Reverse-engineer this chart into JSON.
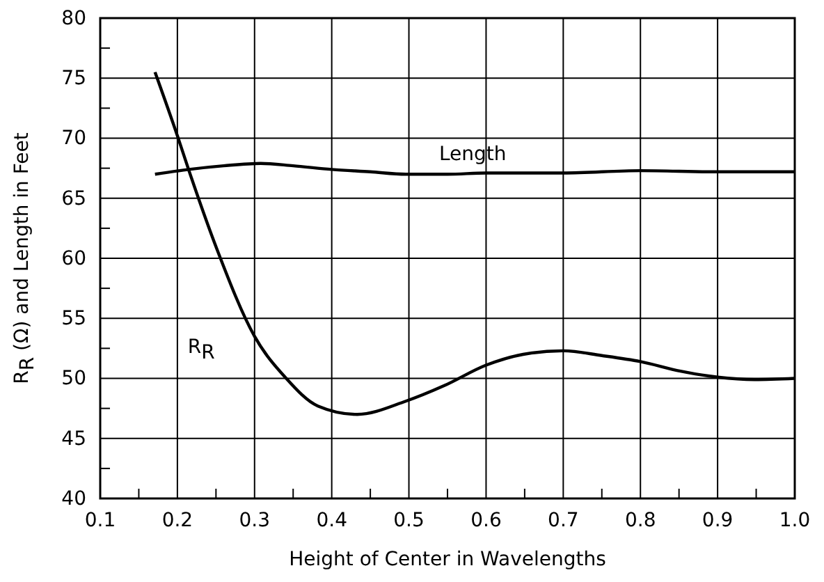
{
  "chart_data": {
    "type": "line",
    "xlabel": "Height of Center in Wavelengths",
    "ylabel": "R$_{R}$ (Ω) and Length in Feet",
    "xlim": [
      0.1,
      1.0
    ],
    "ylim": [
      40,
      80
    ],
    "xticks": [
      0.1,
      {
        "value": 0.15,
        "label": null
      },
      0.2,
      {
        "value": 0.25,
        "label": null
      },
      0.3,
      {
        "value": 0.35,
        "label": null
      },
      0.4,
      {
        "value": 0.45,
        "label": null
      },
      0.5,
      {
        "value": 0.55,
        "label": null
      },
      0.6,
      {
        "value": 0.65,
        "label": null
      },
      0.7,
      {
        "value": 0.75,
        "label": null
      },
      0.8,
      {
        "value": 0.85,
        "label": null
      },
      0.9,
      {
        "value": 0.95,
        "label": null
      },
      {
        "value": 1.0,
        "label": "1.0"
      }
    ],
    "yticks": [
      40,
      {
        "value": 42.5,
        "label": null
      },
      45,
      {
        "value": 47.5,
        "label": null
      },
      50,
      {
        "value": 52.5,
        "label": null
      },
      55,
      {
        "value": 57.5,
        "label": null
      },
      60,
      {
        "value": 62.5,
        "label": null
      },
      65,
      {
        "value": 67.5,
        "label": null
      },
      70,
      {
        "value": 72.5,
        "label": null
      },
      75,
      {
        "value": 77.5,
        "label": null
      },
      80
    ],
    "grid": true,
    "marker": "none",
    "line_style": "solid",
    "series": [
      {
        "name": "Length",
        "color": "#000000",
        "x": [
          0.171,
          0.215,
          0.26,
          0.308,
          0.35,
          0.4,
          0.45,
          0.496,
          0.55,
          0.6,
          0.7,
          0.8,
          0.9,
          1.0
        ],
        "values": [
          67.0,
          67.4,
          67.7,
          67.9,
          67.7,
          67.4,
          67.2,
          67.0,
          67.0,
          67.1,
          67.1,
          67.3,
          67.2,
          67.2
        ]
      },
      {
        "name": "R$_{R}$",
        "color": "#000000",
        "x": [
          0.171,
          0.2,
          0.215,
          0.251,
          0.3,
          0.341,
          0.382,
          0.433,
          0.496,
          0.546,
          0.6,
          0.648,
          0.7,
          0.75,
          0.8,
          0.852,
          0.9,
          0.948,
          1.0
        ],
        "values": [
          75.5,
          70.2,
          67.3,
          60.8,
          53.5,
          50.0,
          47.7,
          47.0,
          48.1,
          49.4,
          51.1,
          52.0,
          52.3,
          51.9,
          51.4,
          50.6,
          50.1,
          49.9,
          50.0
        ]
      }
    ]
  }
}
